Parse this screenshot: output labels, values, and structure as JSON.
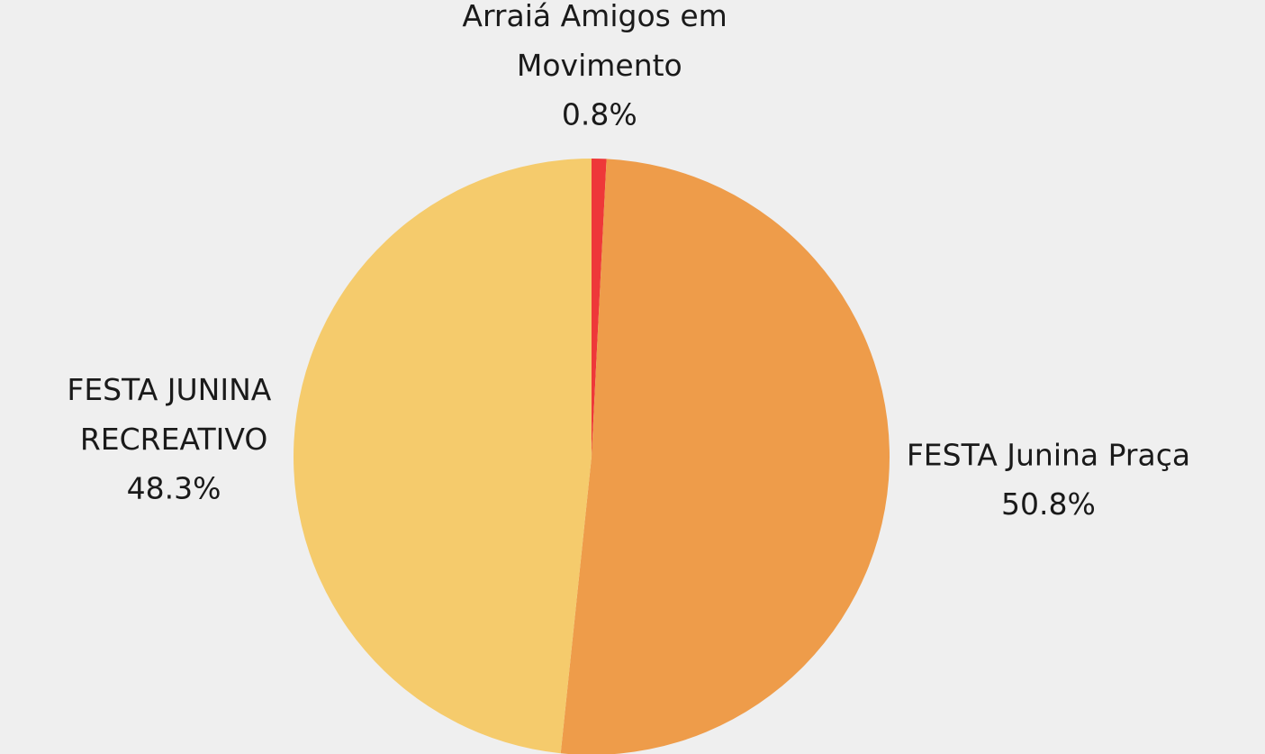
{
  "chart_data": {
    "type": "pie",
    "categories": [
      "Arraiá Amigos em Movimento",
      "FESTA Junina Praça",
      "FESTA JUNINA RECREATIVO"
    ],
    "values": [
      0.8,
      50.8,
      48.3
    ],
    "value_labels": [
      "0.8%",
      "50.8%",
      "48.3%"
    ],
    "colors": [
      "#ee3839",
      "#ee9c4a",
      "#f5cb6c"
    ]
  }
}
